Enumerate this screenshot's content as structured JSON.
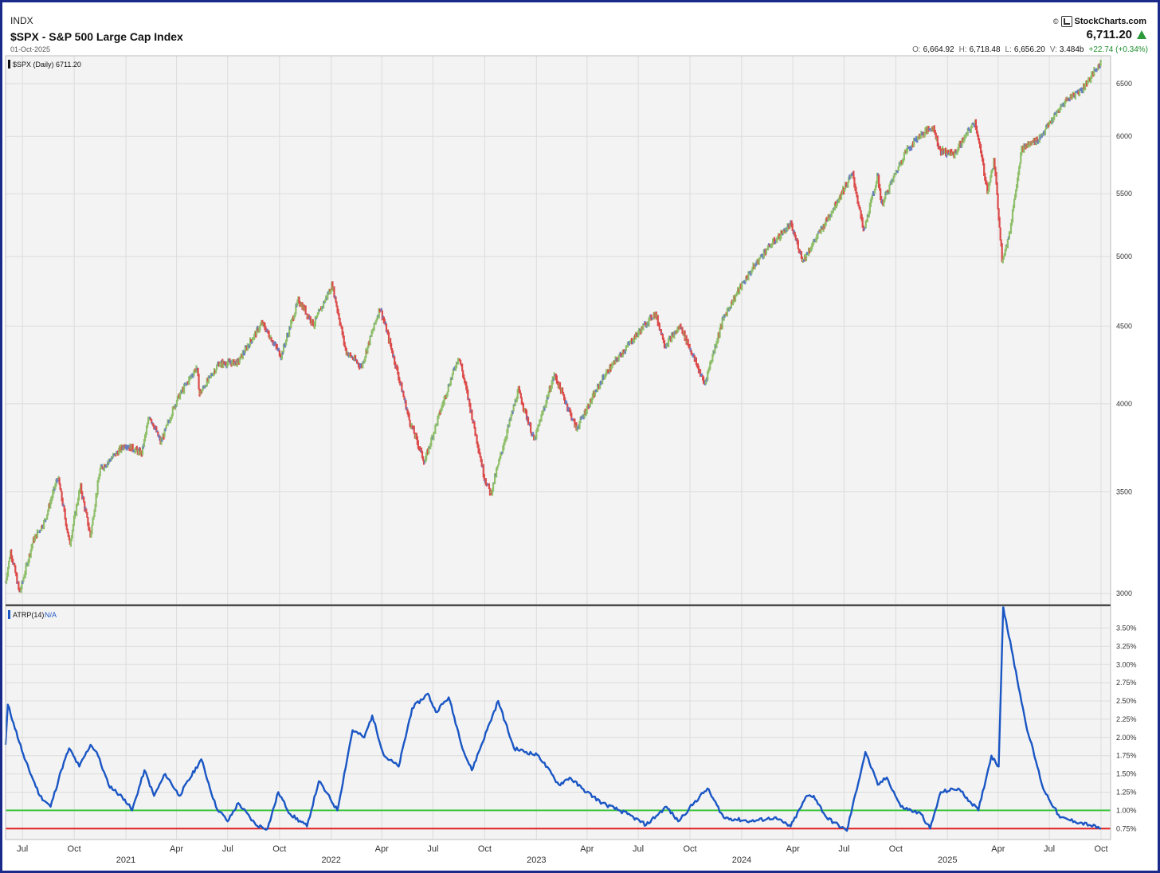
{
  "header": {
    "exchange": "INDX",
    "title": "$SPX - S&P 500 Large Cap Index",
    "date": "01-Oct-2025",
    "logo": "StockCharts.com",
    "copyright": "©",
    "last_price": "6,711.20",
    "ohlc": [
      {
        "k": "O:",
        "v": "6,664.92"
      },
      {
        "k": "H:",
        "v": "6,718.48"
      },
      {
        "k": "L:",
        "v": "6,656.20"
      },
      {
        "k": "V:",
        "v": "3.484b"
      }
    ],
    "change": "+22.74 (+0.34%)"
  },
  "colors": {
    "up": "#8fbf6a",
    "down": "#dc4a4a",
    "neutral": "#6a7ec2",
    "atr_line": "#1a56c4",
    "upper_ref": "#3cc43c",
    "lower_ref": "#e02020",
    "frame": "#1a2a8a"
  },
  "chart_data": [
    {
      "type": "line",
      "name": "price-panel",
      "legend_label": "$SPX (Daily) 6711.20",
      "y_scale": "log",
      "ylim": [
        2950,
        6780
      ],
      "y_ticks": [
        3000,
        3500,
        4000,
        4500,
        5000,
        5500,
        6000,
        6500
      ],
      "y_tick_labels": [
        "3000",
        "3500",
        "4000",
        "4500",
        "5000",
        "5500",
        "6000",
        "6500"
      ],
      "x_range": [
        "2020-06-01",
        "2025-10-18"
      ],
      "points": [
        [
          "2020-06-01",
          3050
        ],
        [
          "2020-06-10",
          3200
        ],
        [
          "2020-06-26",
          3000
        ],
        [
          "2020-07-20",
          3250
        ],
        [
          "2020-08-10",
          3350
        ],
        [
          "2020-09-02",
          3580
        ],
        [
          "2020-09-23",
          3230
        ],
        [
          "2020-10-12",
          3530
        ],
        [
          "2020-10-30",
          3270
        ],
        [
          "2020-11-16",
          3620
        ],
        [
          "2020-12-31",
          3760
        ],
        [
          "2021-01-29",
          3710
        ],
        [
          "2021-02-12",
          3930
        ],
        [
          "2021-03-04",
          3770
        ],
        [
          "2021-04-01",
          4020
        ],
        [
          "2021-05-07",
          4230
        ],
        [
          "2021-05-12",
          4060
        ],
        [
          "2021-06-15",
          4250
        ],
        [
          "2021-07-19",
          4260
        ],
        [
          "2021-08-31",
          4520
        ],
        [
          "2021-10-04",
          4300
        ],
        [
          "2021-11-04",
          4680
        ],
        [
          "2021-12-01",
          4510
        ],
        [
          "2022-01-03",
          4790
        ],
        [
          "2022-01-27",
          4330
        ],
        [
          "2022-02-24",
          4230
        ],
        [
          "2022-03-29",
          4630
        ],
        [
          "2022-05-20",
          3900
        ],
        [
          "2022-06-16",
          3660
        ],
        [
          "2022-08-16",
          4300
        ],
        [
          "2022-09-30",
          3580
        ],
        [
          "2022-10-12",
          3490
        ],
        [
          "2022-11-30",
          4080
        ],
        [
          "2022-12-28",
          3780
        ],
        [
          "2023-02-02",
          4180
        ],
        [
          "2023-03-13",
          3850
        ],
        [
          "2023-05-01",
          4170
        ],
        [
          "2023-06-30",
          4450
        ],
        [
          "2023-07-31",
          4590
        ],
        [
          "2023-08-18",
          4370
        ],
        [
          "2023-09-14",
          4500
        ],
        [
          "2023-10-27",
          4120
        ],
        [
          "2023-11-30",
          4560
        ],
        [
          "2023-12-29",
          4770
        ],
        [
          "2024-02-09",
          5030
        ],
        [
          "2024-03-28",
          5250
        ],
        [
          "2024-04-19",
          4970
        ],
        [
          "2024-05-31",
          5280
        ],
        [
          "2024-07-16",
          5670
        ],
        [
          "2024-08-05",
          5190
        ],
        [
          "2024-08-30",
          5650
        ],
        [
          "2024-09-06",
          5410
        ],
        [
          "2024-10-18",
          5860
        ],
        [
          "2024-11-11",
          6000
        ],
        [
          "2024-12-06",
          6090
        ],
        [
          "2024-12-19",
          5870
        ],
        [
          "2025-01-13",
          5840
        ],
        [
          "2025-02-19",
          6140
        ],
        [
          "2025-03-13",
          5520
        ],
        [
          "2025-03-25",
          5780
        ],
        [
          "2025-04-08",
          4980
        ],
        [
          "2025-04-21",
          5160
        ],
        [
          "2025-05-13",
          5890
        ],
        [
          "2025-06-13",
          5980
        ],
        [
          "2025-07-31",
          6340
        ],
        [
          "2025-08-29",
          6450
        ],
        [
          "2025-10-01",
          6711
        ]
      ]
    },
    {
      "type": "line",
      "name": "atrp-panel",
      "legend_label": "ATRP(14)",
      "legend_value": "N/A",
      "ylim": [
        0.6,
        3.8
      ],
      "y_ticks": [
        0.75,
        1.0,
        1.25,
        1.5,
        1.75,
        2.0,
        2.25,
        2.5,
        2.75,
        3.0,
        3.25,
        3.5
      ],
      "y_tick_labels": [
        "0.75%",
        "1.00%",
        "1.25%",
        "1.50%",
        "1.75%",
        "2.00%",
        "2.25%",
        "2.50%",
        "2.75%",
        "3.00%",
        "3.25%",
        "3.50%"
      ],
      "reference_lines": [
        {
          "value": 1.0,
          "color": "#3cc43c"
        },
        {
          "value": 0.75,
          "color": "#e02020"
        }
      ],
      "points": [
        [
          "2020-06-01",
          1.9
        ],
        [
          "2020-06-05",
          2.45
        ],
        [
          "2020-06-15",
          2.2
        ],
        [
          "2020-07-05",
          1.7
        ],
        [
          "2020-08-01",
          1.2
        ],
        [
          "2020-08-20",
          1.05
        ],
        [
          "2020-09-08",
          1.55
        ],
        [
          "2020-09-22",
          1.85
        ],
        [
          "2020-10-10",
          1.6
        ],
        [
          "2020-10-30",
          1.9
        ],
        [
          "2020-11-10",
          1.8
        ],
        [
          "2020-12-01",
          1.35
        ],
        [
          "2020-12-30",
          1.15
        ],
        [
          "2021-01-12",
          1.0
        ],
        [
          "2021-02-03",
          1.55
        ],
        [
          "2021-02-20",
          1.2
        ],
        [
          "2021-03-12",
          1.5
        ],
        [
          "2021-04-06",
          1.2
        ],
        [
          "2021-05-15",
          1.7
        ],
        [
          "2021-06-10",
          1.05
        ],
        [
          "2021-07-01",
          0.85
        ],
        [
          "2021-07-20",
          1.1
        ],
        [
          "2021-08-20",
          0.8
        ],
        [
          "2021-09-10",
          0.75
        ],
        [
          "2021-09-29",
          1.25
        ],
        [
          "2021-10-20",
          0.95
        ],
        [
          "2021-11-19",
          0.78
        ],
        [
          "2021-12-10",
          1.4
        ],
        [
          "2021-12-23",
          1.25
        ],
        [
          "2022-01-12",
          1.0
        ],
        [
          "2022-02-08",
          2.1
        ],
        [
          "2022-03-01",
          2.0
        ],
        [
          "2022-03-15",
          2.3
        ],
        [
          "2022-04-05",
          1.75
        ],
        [
          "2022-05-01",
          1.6
        ],
        [
          "2022-05-25",
          2.4
        ],
        [
          "2022-06-22",
          2.6
        ],
        [
          "2022-07-06",
          2.35
        ],
        [
          "2022-07-29",
          2.55
        ],
        [
          "2022-08-25",
          1.8
        ],
        [
          "2022-09-08",
          1.55
        ],
        [
          "2022-10-10",
          2.2
        ],
        [
          "2022-10-25",
          2.5
        ],
        [
          "2022-11-22",
          1.85
        ],
        [
          "2023-01-05",
          1.75
        ],
        [
          "2023-02-10",
          1.35
        ],
        [
          "2023-03-01",
          1.45
        ],
        [
          "2023-03-23",
          1.3
        ],
        [
          "2023-04-28",
          1.1
        ],
        [
          "2023-06-12",
          0.95
        ],
        [
          "2023-07-15",
          0.8
        ],
        [
          "2023-08-20",
          1.05
        ],
        [
          "2023-09-10",
          0.85
        ],
        [
          "2023-10-08",
          1.1
        ],
        [
          "2023-11-01",
          1.3
        ],
        [
          "2023-11-30",
          0.9
        ],
        [
          "2024-01-18",
          0.85
        ],
        [
          "2024-02-28",
          0.9
        ],
        [
          "2024-03-28",
          0.78
        ],
        [
          "2024-04-26",
          1.2
        ],
        [
          "2024-05-08",
          1.2
        ],
        [
          "2024-05-31",
          0.9
        ],
        [
          "2024-07-06",
          0.72
        ],
        [
          "2024-08-08",
          1.8
        ],
        [
          "2024-08-30",
          1.35
        ],
        [
          "2024-09-15",
          1.45
        ],
        [
          "2024-10-10",
          1.05
        ],
        [
          "2024-11-15",
          0.95
        ],
        [
          "2024-12-01",
          0.75
        ],
        [
          "2024-12-20",
          1.25
        ],
        [
          "2025-01-20",
          1.3
        ],
        [
          "2025-02-25",
          1.0
        ],
        [
          "2025-03-20",
          1.75
        ],
        [
          "2025-04-02",
          1.6
        ],
        [
          "2025-04-10",
          3.8
        ],
        [
          "2025-04-25",
          3.2
        ],
        [
          "2025-05-20",
          2.2
        ],
        [
          "2025-06-20",
          1.3
        ],
        [
          "2025-07-20",
          0.9
        ],
        [
          "2025-08-15",
          0.85
        ],
        [
          "2025-09-10",
          0.8
        ],
        [
          "2025-10-01",
          0.75
        ]
      ]
    }
  ],
  "x_axis": {
    "month_labels": [
      {
        "label": "Jul",
        "date": "2020-07-01"
      },
      {
        "label": "Oct",
        "date": "2020-10-01"
      },
      {
        "label": "Apr",
        "date": "2021-04-01"
      },
      {
        "label": "Jul",
        "date": "2021-07-01"
      },
      {
        "label": "Oct",
        "date": "2021-10-01"
      },
      {
        "label": "Apr",
        "date": "2022-04-01"
      },
      {
        "label": "Jul",
        "date": "2022-07-01"
      },
      {
        "label": "Oct",
        "date": "2022-10-01"
      },
      {
        "label": "Apr",
        "date": "2023-04-01"
      },
      {
        "label": "Jul",
        "date": "2023-07-01"
      },
      {
        "label": "Oct",
        "date": "2023-10-01"
      },
      {
        "label": "Apr",
        "date": "2024-04-01"
      },
      {
        "label": "Jul",
        "date": "2024-07-01"
      },
      {
        "label": "Oct",
        "date": "2024-10-01"
      },
      {
        "label": "Apr",
        "date": "2025-04-01"
      },
      {
        "label": "Jul",
        "date": "2025-07-01"
      },
      {
        "label": "Oct",
        "date": "2025-10-01"
      }
    ],
    "year_labels": [
      {
        "label": "2021",
        "date": "2021-01-01"
      },
      {
        "label": "2022",
        "date": "2022-01-01"
      },
      {
        "label": "2023",
        "date": "2023-01-01"
      },
      {
        "label": "2024",
        "date": "2024-01-01"
      },
      {
        "label": "2025",
        "date": "2025-01-01"
      }
    ]
  }
}
